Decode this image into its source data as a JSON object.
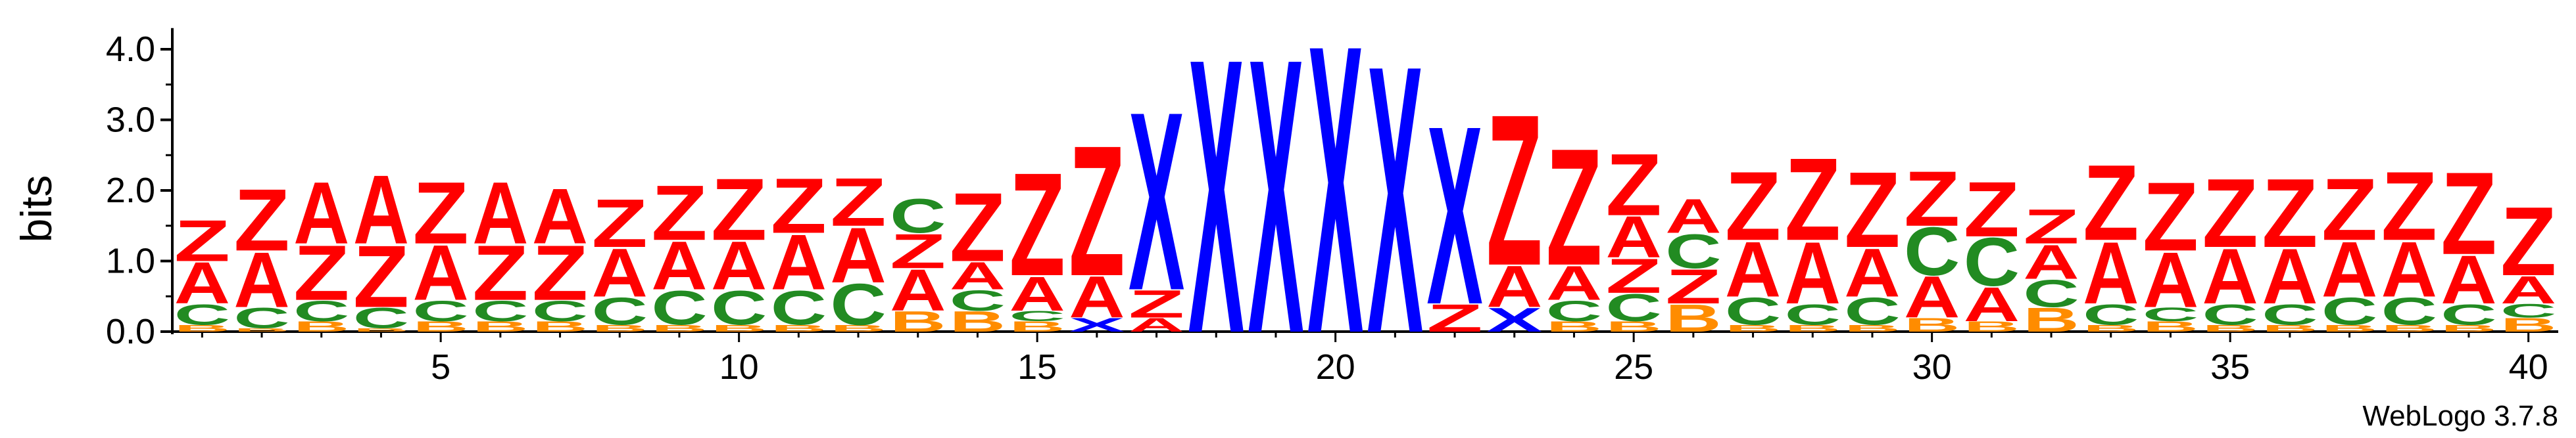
{
  "chart_data": {
    "type": "sequence-logo",
    "ylabel": "bits",
    "ylim": [
      0,
      4.3
    ],
    "y_ticks": [
      "0.0",
      "1.0",
      "2.0",
      "3.0",
      "4.0"
    ],
    "y_tick_values": [
      0,
      1,
      2,
      3,
      4
    ],
    "x_ticks": [
      "5",
      "10",
      "15",
      "20",
      "25",
      "30",
      "35",
      "40"
    ],
    "x_tick_values": [
      5,
      10,
      15,
      20,
      25,
      30,
      35,
      40
    ],
    "x_range": [
      1,
      40
    ],
    "grid": false,
    "footer": "WebLogo 3.7.8",
    "letter_colors": {
      "Z": "#ff0000",
      "A": "#ff0000",
      "C": "#228b22",
      "B": "#ff8c00",
      "X": "#0000ff"
    },
    "positions": [
      {
        "pos": 1,
        "stack": [
          [
            "B",
            0.1
          ],
          [
            "C",
            0.3
          ],
          [
            "A",
            0.6
          ],
          [
            "Z",
            0.6
          ]
        ]
      },
      {
        "pos": 2,
        "stack": [
          [
            "B",
            0.05
          ],
          [
            "C",
            0.3
          ],
          [
            "A",
            0.8
          ],
          [
            "Z",
            0.9
          ]
        ]
      },
      {
        "pos": 3,
        "stack": [
          [
            "B",
            0.15
          ],
          [
            "C",
            0.3
          ],
          [
            "Z",
            0.8
          ],
          [
            "A",
            0.9
          ]
        ]
      },
      {
        "pos": 4,
        "stack": [
          [
            "B",
            0.05
          ],
          [
            "C",
            0.3
          ],
          [
            "Z",
            0.9
          ],
          [
            "A",
            1.0
          ]
        ]
      },
      {
        "pos": 5,
        "stack": [
          [
            "B",
            0.15
          ],
          [
            "C",
            0.3
          ],
          [
            "A",
            0.8
          ],
          [
            "Z",
            0.9
          ]
        ]
      },
      {
        "pos": 6,
        "stack": [
          [
            "B",
            0.15
          ],
          [
            "C",
            0.3
          ],
          [
            "Z",
            0.8
          ],
          [
            "A",
            0.9
          ]
        ]
      },
      {
        "pos": 7,
        "stack": [
          [
            "B",
            0.15
          ],
          [
            "C",
            0.3
          ],
          [
            "Z",
            0.8
          ],
          [
            "A",
            0.8
          ]
        ]
      },
      {
        "pos": 8,
        "stack": [
          [
            "B",
            0.1
          ],
          [
            "C",
            0.4
          ],
          [
            "A",
            0.7
          ],
          [
            "Z",
            0.7
          ]
        ]
      },
      {
        "pos": 9,
        "stack": [
          [
            "B",
            0.1
          ],
          [
            "C",
            0.5
          ],
          [
            "A",
            0.7
          ],
          [
            "Z",
            0.8
          ]
        ]
      },
      {
        "pos": 10,
        "stack": [
          [
            "B",
            0.1
          ],
          [
            "C",
            0.5
          ],
          [
            "A",
            0.7
          ],
          [
            "Z",
            0.9
          ]
        ]
      },
      {
        "pos": 11,
        "stack": [
          [
            "B",
            0.1
          ],
          [
            "C",
            0.5
          ],
          [
            "A",
            0.8
          ],
          [
            "Z",
            0.8
          ]
        ]
      },
      {
        "pos": 12,
        "stack": [
          [
            "B",
            0.1
          ],
          [
            "C",
            0.6
          ],
          [
            "A",
            0.8
          ],
          [
            "Z",
            0.7
          ]
        ]
      },
      {
        "pos": 13,
        "stack": [
          [
            "B",
            0.3
          ],
          [
            "A",
            0.6
          ],
          [
            "Z",
            0.5
          ],
          [
            "C",
            0.5
          ]
        ]
      },
      {
        "pos": 14,
        "stack": [
          [
            "B",
            0.3
          ],
          [
            "C",
            0.3
          ],
          [
            "A",
            0.4
          ],
          [
            "Z",
            1.0
          ]
        ]
      },
      {
        "pos": 15,
        "stack": [
          [
            "B",
            0.15
          ],
          [
            "C",
            0.15
          ],
          [
            "A",
            0.5
          ],
          [
            "Z",
            1.5
          ]
        ]
      },
      {
        "pos": 16,
        "stack": [
          [
            "X",
            0.2
          ],
          [
            "A",
            0.6
          ],
          [
            "Z",
            1.9
          ]
        ]
      },
      {
        "pos": 17,
        "stack": [
          [
            "A",
            0.2
          ],
          [
            "Z",
            0.4
          ],
          [
            "X",
            2.6
          ]
        ]
      },
      {
        "pos": 18,
        "stack": [
          [
            "X",
            4.0
          ]
        ]
      },
      {
        "pos": 19,
        "stack": [
          [
            "X",
            4.0
          ]
        ]
      },
      {
        "pos": 20,
        "stack": [
          [
            "X",
            4.2
          ]
        ]
      },
      {
        "pos": 21,
        "stack": [
          [
            "X",
            3.9
          ]
        ]
      },
      {
        "pos": 22,
        "stack": [
          [
            "Z",
            0.4
          ],
          [
            "X",
            2.6
          ]
        ]
      },
      {
        "pos": 23,
        "stack": [
          [
            "X",
            0.35
          ],
          [
            "A",
            0.6
          ],
          [
            "Z",
            2.2
          ]
        ]
      },
      {
        "pos": 24,
        "stack": [
          [
            "B",
            0.15
          ],
          [
            "C",
            0.3
          ],
          [
            "A",
            0.5
          ],
          [
            "Z",
            1.7
          ]
        ]
      },
      {
        "pos": 25,
        "stack": [
          [
            "B",
            0.15
          ],
          [
            "C",
            0.4
          ],
          [
            "Z",
            0.5
          ],
          [
            "A",
            0.6
          ],
          [
            "Z",
            0.9
          ]
        ]
      },
      {
        "pos": 26,
        "stack": [
          [
            "B",
            0.4
          ],
          [
            "Z",
            0.5
          ],
          [
            "C",
            0.5
          ],
          [
            "A",
            0.5
          ]
        ]
      },
      {
        "pos": 27,
        "stack": [
          [
            "B",
            0.1
          ],
          [
            "C",
            0.4
          ],
          [
            "A",
            0.8
          ],
          [
            "Z",
            1.0
          ]
        ]
      },
      {
        "pos": 28,
        "stack": [
          [
            "B",
            0.1
          ],
          [
            "C",
            0.3
          ],
          [
            "A",
            0.9
          ],
          [
            "Z",
            1.2
          ]
        ]
      },
      {
        "pos": 29,
        "stack": [
          [
            "B",
            0.1
          ],
          [
            "C",
            0.4
          ],
          [
            "A",
            0.7
          ],
          [
            "Z",
            1.1
          ]
        ]
      },
      {
        "pos": 30,
        "stack": [
          [
            "B",
            0.2
          ],
          [
            "A",
            0.6
          ],
          [
            "C",
            0.7
          ],
          [
            "Z",
            0.8
          ]
        ]
      },
      {
        "pos": 31,
        "stack": [
          [
            "B",
            0.15
          ],
          [
            "A",
            0.5
          ],
          [
            "C",
            0.7
          ],
          [
            "Z",
            0.8
          ]
        ]
      },
      {
        "pos": 32,
        "stack": [
          [
            "B",
            0.35
          ],
          [
            "C",
            0.4
          ],
          [
            "A",
            0.5
          ],
          [
            "Z",
            0.5
          ]
        ]
      },
      {
        "pos": 33,
        "stack": [
          [
            "B",
            0.1
          ],
          [
            "C",
            0.3
          ],
          [
            "A",
            0.9
          ],
          [
            "Z",
            1.1
          ]
        ]
      },
      {
        "pos": 34,
        "stack": [
          [
            "B",
            0.15
          ],
          [
            "C",
            0.2
          ],
          [
            "A",
            0.8
          ],
          [
            "Z",
            1.0
          ]
        ]
      },
      {
        "pos": 35,
        "stack": [
          [
            "B",
            0.1
          ],
          [
            "C",
            0.3
          ],
          [
            "A",
            0.8
          ],
          [
            "Z",
            1.0
          ]
        ]
      },
      {
        "pos": 36,
        "stack": [
          [
            "B",
            0.1
          ],
          [
            "C",
            0.3
          ],
          [
            "A",
            0.8
          ],
          [
            "Z",
            1.0
          ]
        ]
      },
      {
        "pos": 37,
        "stack": [
          [
            "B",
            0.1
          ],
          [
            "C",
            0.4
          ],
          [
            "A",
            0.8
          ],
          [
            "Z",
            0.9
          ]
        ]
      },
      {
        "pos": 38,
        "stack": [
          [
            "B",
            0.1
          ],
          [
            "C",
            0.4
          ],
          [
            "A",
            0.8
          ],
          [
            "Z",
            1.0
          ]
        ]
      },
      {
        "pos": 39,
        "stack": [
          [
            "B",
            0.1
          ],
          [
            "C",
            0.3
          ],
          [
            "A",
            0.7
          ],
          [
            "Z",
            1.2
          ]
        ]
      },
      {
        "pos": 40,
        "stack": [
          [
            "B",
            0.2
          ],
          [
            "C",
            0.2
          ],
          [
            "A",
            0.4
          ],
          [
            "Z",
            1.0
          ]
        ]
      }
    ]
  }
}
